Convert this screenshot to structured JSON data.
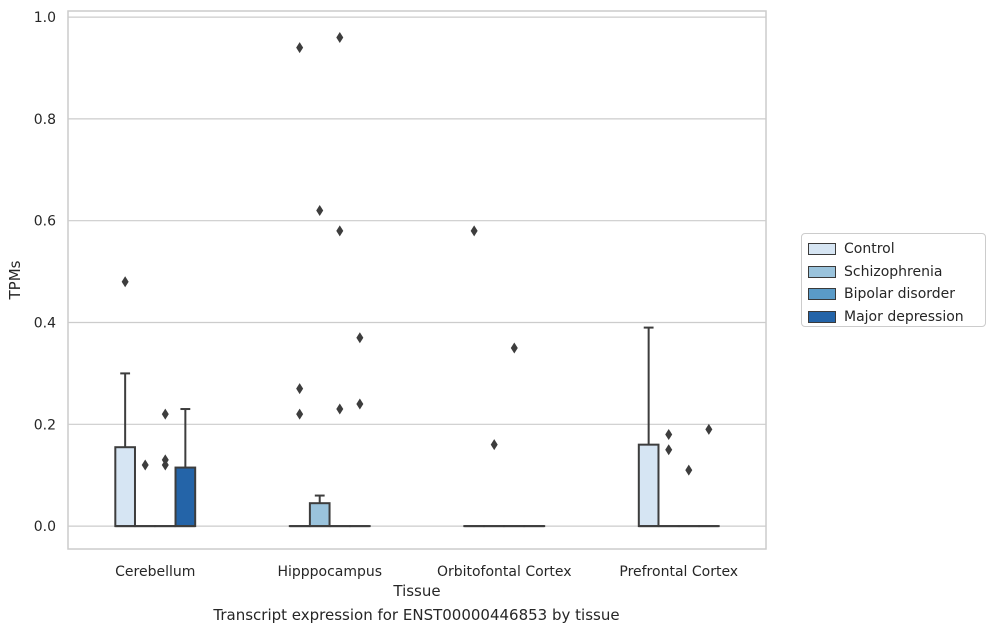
{
  "chart_data": {
    "type": "box",
    "title": "",
    "caption": "Transcript expression for ENST00000446853 by tissue",
    "xlabel": "Tissue",
    "ylabel": "TPMs",
    "ylim": [
      -0.045,
      1.012
    ],
    "yticks": [
      "0.0",
      "0.2",
      "0.4",
      "0.6",
      "0.8",
      "1.0"
    ],
    "grid": true,
    "legend_position": "right",
    "categories": [
      "Cerebellum",
      "Hipppocampus",
      "Orbitofontal Cortex",
      "Prefrontal Cortex"
    ],
    "series": [
      {
        "name": "Control",
        "color": "#d6e5f3",
        "boxes": [
          {
            "q1": 0.0,
            "median": 0.0,
            "q3": 0.155,
            "whisker_low": 0.0,
            "whisker_high": 0.3,
            "outliers": [
              0.48
            ]
          },
          {
            "q1": 0.0,
            "median": 0.0,
            "q3": 0.0,
            "whisker_low": 0.0,
            "whisker_high": 0.0,
            "outliers": [
              0.94,
              0.27,
              0.22
            ]
          },
          {
            "q1": 0.0,
            "median": 0.0,
            "q3": 0.0,
            "whisker_low": 0.0,
            "whisker_high": 0.0,
            "outliers": [
              0.58
            ]
          },
          {
            "q1": 0.0,
            "median": 0.0,
            "q3": 0.16,
            "whisker_low": 0.0,
            "whisker_high": 0.39,
            "outliers": []
          }
        ]
      },
      {
        "name": "Schizophrenia",
        "color": "#9ac3dc",
        "boxes": [
          {
            "q1": 0.0,
            "median": 0.0,
            "q3": 0.0,
            "whisker_low": 0.0,
            "whisker_high": 0.0,
            "outliers": [
              0.12
            ]
          },
          {
            "q1": 0.0,
            "median": 0.0,
            "q3": 0.045,
            "whisker_low": 0.0,
            "whisker_high": 0.06,
            "outliers": [
              0.62
            ]
          },
          {
            "q1": 0.0,
            "median": 0.0,
            "q3": 0.0,
            "whisker_low": 0.0,
            "whisker_high": 0.0,
            "outliers": [
              0.16
            ]
          },
          {
            "q1": 0.0,
            "median": 0.0,
            "q3": 0.0,
            "whisker_low": 0.0,
            "whisker_high": 0.0,
            "outliers": [
              0.18,
              0.15
            ]
          }
        ]
      },
      {
        "name": "Bipolar disorder",
        "color": "#5a9bc8",
        "boxes": [
          {
            "q1": 0.0,
            "median": 0.0,
            "q3": 0.0,
            "whisker_low": 0.0,
            "whisker_high": 0.0,
            "outliers": [
              0.22,
              0.13,
              0.12
            ]
          },
          {
            "q1": 0.0,
            "median": 0.0,
            "q3": 0.0,
            "whisker_low": 0.0,
            "whisker_high": 0.0,
            "outliers": [
              0.96,
              0.58,
              0.23
            ]
          },
          {
            "q1": 0.0,
            "median": 0.0,
            "q3": 0.0,
            "whisker_low": 0.0,
            "whisker_high": 0.0,
            "outliers": [
              0.35
            ]
          },
          {
            "q1": 0.0,
            "median": 0.0,
            "q3": 0.0,
            "whisker_low": 0.0,
            "whisker_high": 0.0,
            "outliers": [
              0.11
            ]
          }
        ]
      },
      {
        "name": "Major depression",
        "color": "#2464a8",
        "boxes": [
          {
            "q1": 0.0,
            "median": 0.0,
            "q3": 0.115,
            "whisker_low": 0.0,
            "whisker_high": 0.23,
            "outliers": []
          },
          {
            "q1": 0.0,
            "median": 0.0,
            "q3": 0.0,
            "whisker_low": 0.0,
            "whisker_high": 0.0,
            "outliers": [
              0.37,
              0.24
            ]
          },
          {
            "q1": 0.0,
            "median": 0.0,
            "q3": 0.0,
            "whisker_low": 0.0,
            "whisker_high": 0.0,
            "outliers": []
          },
          {
            "q1": 0.0,
            "median": 0.0,
            "q3": 0.0,
            "whisker_low": 0.0,
            "whisker_high": 0.0,
            "outliers": [
              0.19
            ]
          }
        ]
      }
    ]
  }
}
